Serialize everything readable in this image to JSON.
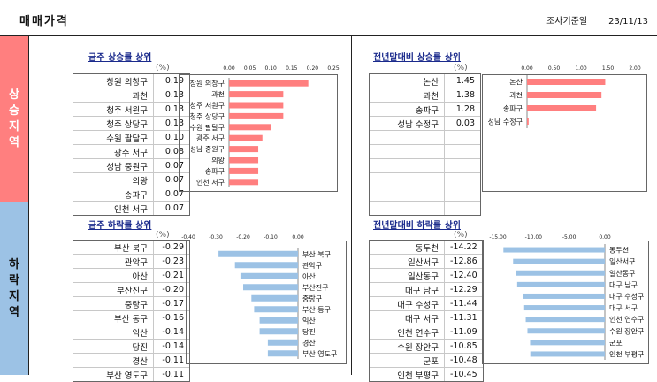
{
  "header": {
    "title": "매매가격",
    "survey_label": "조사기준일",
    "survey_date": "23/11/13"
  },
  "sections": {
    "rise": "상승지역",
    "fall": "하락지역"
  },
  "unit_label": "(%)",
  "panels": {
    "rise_week": {
      "title": "금주 상승률 상위",
      "rows": [
        [
          "창원 의창구",
          "0.19"
        ],
        [
          "과천",
          "0.13"
        ],
        [
          "청주 서원구",
          "0.13"
        ],
        [
          "청주 상당구",
          "0.13"
        ],
        [
          "수원 팔달구",
          "0.10"
        ],
        [
          "광주 서구",
          "0.08"
        ],
        [
          "성남 중원구",
          "0.07"
        ],
        [
          "의왕",
          "0.07"
        ],
        [
          "송파구",
          "0.07"
        ],
        [
          "인천 서구",
          "0.07"
        ]
      ]
    },
    "rise_ytd": {
      "title": "전년말대비 상승률 상위",
      "rows": [
        [
          "논산",
          "1.45"
        ],
        [
          "과천",
          "1.38"
        ],
        [
          "송파구",
          "1.28"
        ],
        [
          "성남 수정구",
          "0.03"
        ]
      ]
    },
    "fall_week": {
      "title": "금주 하락률 상위",
      "rows": [
        [
          "부산 북구",
          "-0.29"
        ],
        [
          "관악구",
          "-0.23"
        ],
        [
          "아산",
          "-0.21"
        ],
        [
          "부산진구",
          "-0.20"
        ],
        [
          "중랑구",
          "-0.17"
        ],
        [
          "부산 동구",
          "-0.16"
        ],
        [
          "익산",
          "-0.14"
        ],
        [
          "당진",
          "-0.14"
        ],
        [
          "경산",
          "-0.11"
        ],
        [
          "부산 영도구",
          "-0.11"
        ]
      ]
    },
    "fall_ytd": {
      "title": "전년말대비 하락률 상위",
      "rows": [
        [
          "동두천",
          "-14.22"
        ],
        [
          "일산서구",
          "-12.86"
        ],
        [
          "일산동구",
          "-12.40"
        ],
        [
          "대구 남구",
          "-12.29"
        ],
        [
          "대구 수성구",
          "-11.44"
        ],
        [
          "대구 서구",
          "-11.31"
        ],
        [
          "인천 연수구",
          "-11.09"
        ],
        [
          "수원 장안구",
          "-10.85"
        ],
        [
          "군포",
          "-10.48"
        ],
        [
          "인천 부평구",
          "-10.45"
        ]
      ]
    }
  },
  "chart_data": [
    {
      "type": "bar",
      "orientation": "horizontal",
      "categories": [
        "창원 의창구",
        "과천",
        "청주 서원구",
        "청주 상당구",
        "수원 팔달구",
        "광주 서구",
        "성남 중원구",
        "의왕",
        "송파구",
        "인천 서구"
      ],
      "values": [
        0.19,
        0.13,
        0.13,
        0.13,
        0.1,
        0.08,
        0.07,
        0.07,
        0.07,
        0.07
      ],
      "xlim": [
        0,
        0.25
      ],
      "ticks": [
        "0.00",
        "0.05",
        "0.10",
        "0.15",
        "0.20",
        "0.25"
      ],
      "color": "#ff7f7f",
      "labels_side": "left"
    },
    {
      "type": "bar",
      "orientation": "horizontal",
      "categories": [
        "논산",
        "과천",
        "송파구",
        "성남 수정구"
      ],
      "values": [
        1.45,
        1.38,
        1.28,
        0.03
      ],
      "xlim": [
        0,
        2.0
      ],
      "ticks": [
        "0.00",
        "0.50",
        "1.00",
        "1.50",
        "2.00"
      ],
      "color": "#ff7f7f",
      "labels_side": "left"
    },
    {
      "type": "bar",
      "orientation": "horizontal",
      "categories": [
        "부산 북구",
        "관악구",
        "아산",
        "부산진구",
        "중랑구",
        "부산 동구",
        "익산",
        "당진",
        "경산",
        "부산 영도구"
      ],
      "values": [
        -0.29,
        -0.23,
        -0.21,
        -0.2,
        -0.17,
        -0.16,
        -0.14,
        -0.14,
        -0.11,
        -0.11
      ],
      "xlim": [
        -0.4,
        0
      ],
      "ticks": [
        "-0.40",
        "-0.30",
        "-0.20",
        "-0.10",
        "0.00"
      ],
      "color": "#9cc2e5",
      "labels_side": "right"
    },
    {
      "type": "bar",
      "orientation": "horizontal",
      "categories": [
        "동두천",
        "일산서구",
        "일산동구",
        "대구 남구",
        "대구 수성구",
        "대구 서구",
        "인천 연수구",
        "수원 장안구",
        "군포",
        "인천 부평구"
      ],
      "values": [
        -14.22,
        -12.86,
        -12.4,
        -12.29,
        -11.44,
        -11.31,
        -11.09,
        -10.85,
        -10.48,
        -10.45
      ],
      "xlim": [
        -15,
        0
      ],
      "ticks": [
        "-15.00",
        "-10.00",
        "-5.00",
        "0.00"
      ],
      "color": "#9cc2e5",
      "labels_side": "right"
    }
  ]
}
